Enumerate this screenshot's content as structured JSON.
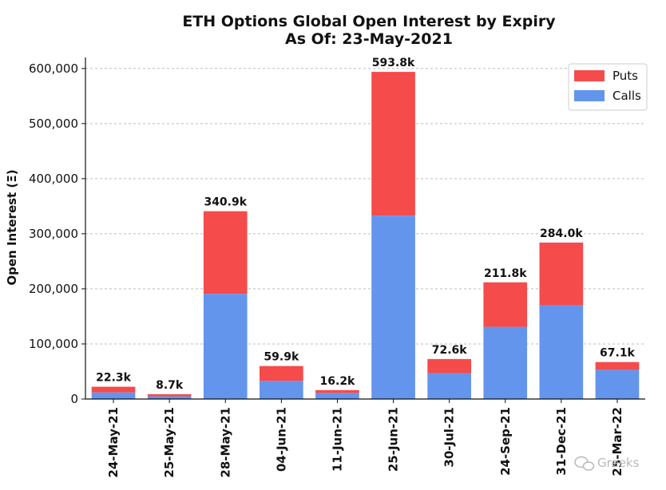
{
  "chart_data": {
    "type": "bar",
    "stacked": true,
    "title": "ETH Options Global Open Interest by Expiry",
    "subtitle": "As Of: 23-May-2021",
    "ylabel": "Open Interest (Ξ)",
    "xlabel": "",
    "ylim": [
      0,
      620000
    ],
    "yticks": [
      0,
      100000,
      200000,
      300000,
      400000,
      500000,
      600000
    ],
    "ytick_labels": [
      "0",
      "100,000",
      "200,000",
      "300,000",
      "400,000",
      "500,000",
      "600,000"
    ],
    "grid": "dashed",
    "legend_position": "top-right",
    "categories": [
      "24-May-21",
      "25-May-21",
      "28-May-21",
      "04-Jun-21",
      "11-Jun-21",
      "25-Jun-21",
      "30-Jul-21",
      "24-Sep-21",
      "31-Dec-21",
      "25-Mar-22"
    ],
    "series": [
      {
        "name": "Calls",
        "color": "#6495ED",
        "values": [
          12000,
          5000,
          191000,
          33000,
          11000,
          333000,
          47000,
          131000,
          170000,
          53000
        ]
      },
      {
        "name": "Puts",
        "color": "#F54B4B",
        "values": [
          10300,
          3700,
          149900,
          26900,
          5200,
          260800,
          25600,
          80800,
          114000,
          14100
        ]
      }
    ],
    "totals_labels": [
      "22.3k",
      "8.7k",
      "340.9k",
      "59.9k",
      "16.2k",
      "593.8k",
      "72.6k",
      "211.8k",
      "284.0k",
      "67.1k"
    ],
    "legend_order": [
      "Puts",
      "Calls"
    ]
  },
  "watermark": {
    "text": "Greeks",
    "icon": "wechat-icon"
  }
}
